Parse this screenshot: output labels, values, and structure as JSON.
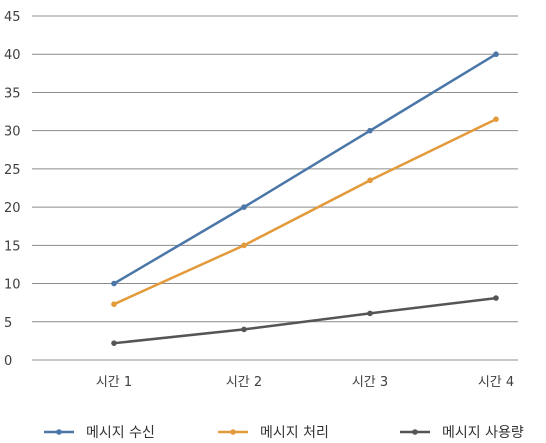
{
  "chart_data": {
    "type": "line",
    "categories": [
      "시간 1",
      "시간 2",
      "시간 3",
      "시간 4"
    ],
    "series": [
      {
        "name": "메시지 수신",
        "values": [
          10,
          20,
          30,
          40
        ],
        "color": "#4a76a8"
      },
      {
        "name": "메시지 처리",
        "values": [
          7.3,
          15,
          23.5,
          31.5
        ],
        "color": "#e39a3b"
      },
      {
        "name": "메시지 사용량",
        "values": [
          2.2,
          4,
          6.1,
          8.1
        ],
        "color": "#555555"
      }
    ],
    "y_ticks": [
      "0",
      "5",
      "10",
      "15",
      "20",
      "25",
      "30",
      "35",
      "40",
      "45"
    ],
    "ylim": [
      0,
      45
    ],
    "grid": true,
    "legend_position": "bottom"
  }
}
